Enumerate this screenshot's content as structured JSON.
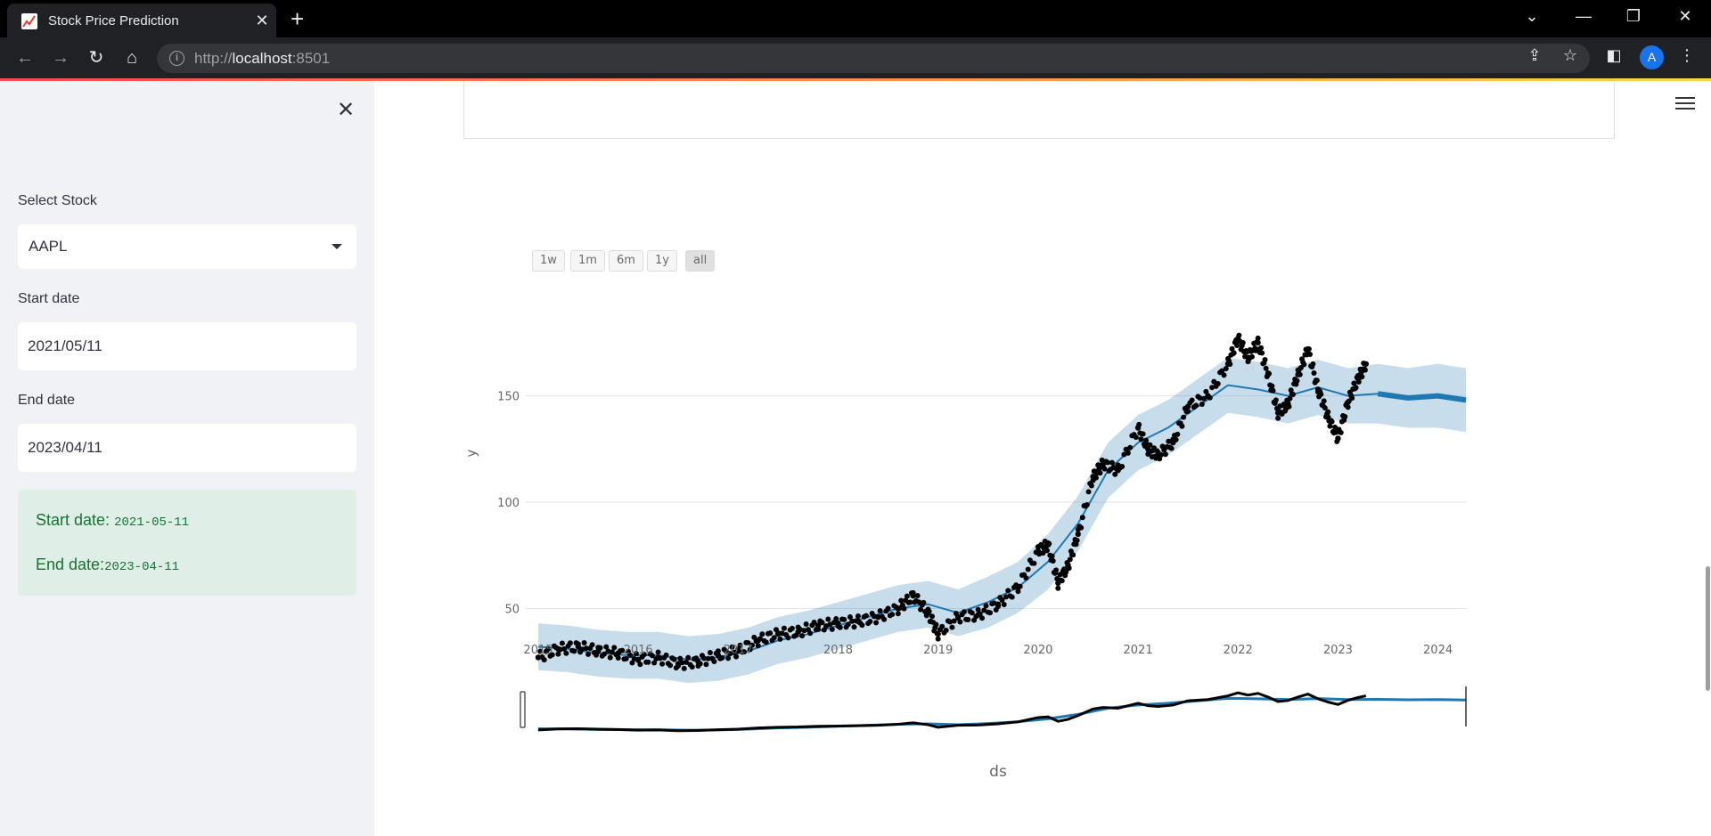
{
  "browser": {
    "tab_title": "Stock Price Prediction",
    "url_scheme": "http://",
    "url_host": "localhost",
    "url_port": ":8501",
    "avatar_letter": "A",
    "colors": {
      "tabbar": "#000000",
      "toolbar": "#202124",
      "omnibox": "#35363a"
    }
  },
  "sidebar": {
    "stock_label": "Select Stock",
    "stock_value": "AAPL",
    "start_label": "Start date",
    "start_value": "2021/05/11",
    "end_label": "End date",
    "end_value": "2023/04/11",
    "alert_start_label": "Start date: ",
    "alert_start_value": "2021-05-11",
    "alert_end_label": "End date:",
    "alert_end_value": "2023-04-11",
    "colors": {
      "background": "#f0f2f6",
      "alert_bg": "#dfeee6",
      "alert_text": "#177233"
    }
  },
  "chart_data": {
    "type": "line",
    "title": "",
    "xlabel": "ds",
    "ylabel": "y",
    "range_buttons": [
      "1w",
      "1m",
      "6m",
      "1y",
      "all"
    ],
    "range_selected": "all",
    "x_ticks": [
      "2015",
      "2016",
      "2017",
      "2018",
      "2019",
      "2020",
      "2021",
      "2022",
      "2023",
      "2024"
    ],
    "y_ticks": [
      50,
      100,
      150
    ],
    "xlim": [
      2014.92,
      2024.28
    ],
    "ylim": [
      5,
      185
    ],
    "grid": true,
    "series": [
      {
        "kind": "actual",
        "color": "#000000",
        "x": [
          2015.0,
          2015.2,
          2015.4,
          2015.6,
          2015.8,
          2016.0,
          2016.2,
          2016.4,
          2016.6,
          2016.8,
          2017.0,
          2017.2,
          2017.4,
          2017.6,
          2017.8,
          2018.0,
          2018.2,
          2018.4,
          2018.6,
          2018.75,
          2018.9,
          2019.0,
          2019.2,
          2019.4,
          2019.6,
          2019.8,
          2020.0,
          2020.1,
          2020.2,
          2020.3,
          2020.4,
          2020.55,
          2020.65,
          2020.8,
          2021.0,
          2021.1,
          2021.2,
          2021.35,
          2021.5,
          2021.7,
          2021.9,
          2022.0,
          2022.1,
          2022.2,
          2022.3,
          2022.4,
          2022.5,
          2022.6,
          2022.7,
          2022.8,
          2022.9,
          2023.0,
          2023.1,
          2023.2,
          2023.28
        ],
        "y": [
          27,
          31,
          32,
          30,
          29,
          26,
          27,
          24,
          25,
          28,
          30,
          35,
          38,
          39,
          42,
          43,
          44,
          46,
          50,
          56,
          48,
          38,
          46,
          47,
          52,
          60,
          77,
          80,
          62,
          70,
          85,
          112,
          118,
          115,
          135,
          125,
          122,
          128,
          145,
          150,
          165,
          177,
          168,
          175,
          160,
          142,
          146,
          160,
          172,
          153,
          140,
          130,
          147,
          158,
          165
        ]
      },
      {
        "kind": "forecast",
        "color": "#1f77b4",
        "x": [
          2015.0,
          2015.3,
          2015.6,
          2015.9,
          2016.2,
          2016.5,
          2016.8,
          2017.1,
          2017.4,
          2017.7,
          2018.0,
          2018.3,
          2018.6,
          2018.9,
          2019.2,
          2019.5,
          2019.8,
          2020.1,
          2020.4,
          2020.7,
          2021.0,
          2021.3,
          2021.6,
          2021.9,
          2022.2,
          2022.5,
          2022.8,
          2023.1,
          2023.4,
          2023.7,
          2024.0,
          2024.28
        ],
        "y": [
          32,
          31,
          29,
          28,
          28,
          26,
          27,
          30,
          35,
          38,
          42,
          46,
          50,
          52,
          48,
          53,
          60,
          72,
          90,
          115,
          128,
          135,
          145,
          155,
          153,
          150,
          154,
          150,
          151,
          149,
          150,
          148
        ],
        "band": [
          11,
          11,
          11,
          11,
          11,
          11,
          11,
          11,
          11,
          11,
          11,
          11,
          11,
          11,
          11,
          12,
          12,
          13,
          13,
          13,
          13,
          13,
          13,
          13,
          13,
          13,
          13,
          13,
          14,
          14,
          15,
          15
        ]
      }
    ]
  }
}
